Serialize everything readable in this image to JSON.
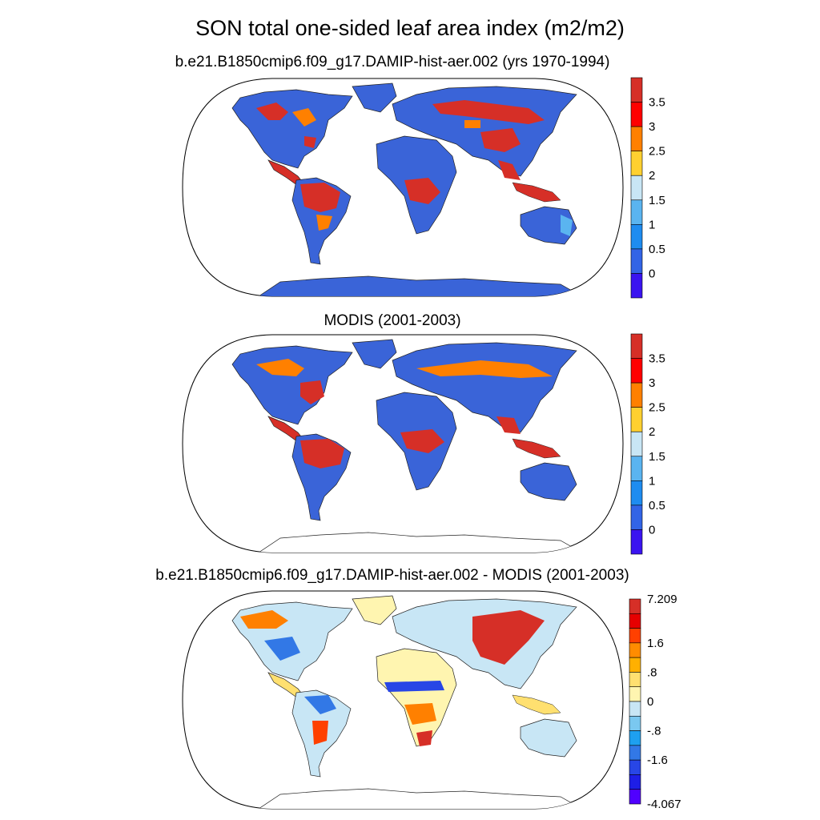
{
  "title": "SON total one-sided leaf area index (m2/m2)",
  "panels": [
    {
      "title": "b.e21.B1850cmip6.f09_g17.DAMIP-hist-aer.002 (yrs 1970-1994)",
      "colorbar": {
        "labels": [
          "3.5",
          "3",
          "2.5",
          "2",
          "1.5",
          "1",
          "0.5",
          "0"
        ],
        "colors": [
          "#d62f27",
          "#ff0000",
          "#ff8000",
          "#ffd030",
          "#c8e6f5",
          "#5ab4f0",
          "#1e8cf0",
          "#3264e6",
          "#3a14f0"
        ]
      }
    },
    {
      "title": "MODIS (2001-2003)",
      "colorbar": {
        "labels": [
          "3.5",
          "3",
          "2.5",
          "2",
          "1.5",
          "1",
          "0.5",
          "0"
        ],
        "colors": [
          "#d62f27",
          "#ff0000",
          "#ff8000",
          "#ffd030",
          "#c8e6f5",
          "#5ab4f0",
          "#1e8cf0",
          "#3264e6",
          "#3a14f0"
        ]
      }
    },
    {
      "title": "b.e21.B1850cmip6.f09_g17.DAMIP-hist-aer.002 - MODIS (2001-2003)",
      "colorbar": {
        "labels": [
          "7.209",
          "1.6",
          ".8",
          "0",
          "-.8",
          "-1.6",
          "-4.067"
        ],
        "colors": [
          "#d62f27",
          "#e60000",
          "#ff4000",
          "#ff8c00",
          "#ffb000",
          "#ffe070",
          "#fff5b0",
          "#c8e6f5",
          "#7ac8f0",
          "#1ea0f0",
          "#3278e6",
          "#2846e6",
          "#1e1ee6",
          "#5000ff"
        ]
      }
    }
  ],
  "colors": {
    "ocean": "#ffffff",
    "outline": "#000000"
  }
}
